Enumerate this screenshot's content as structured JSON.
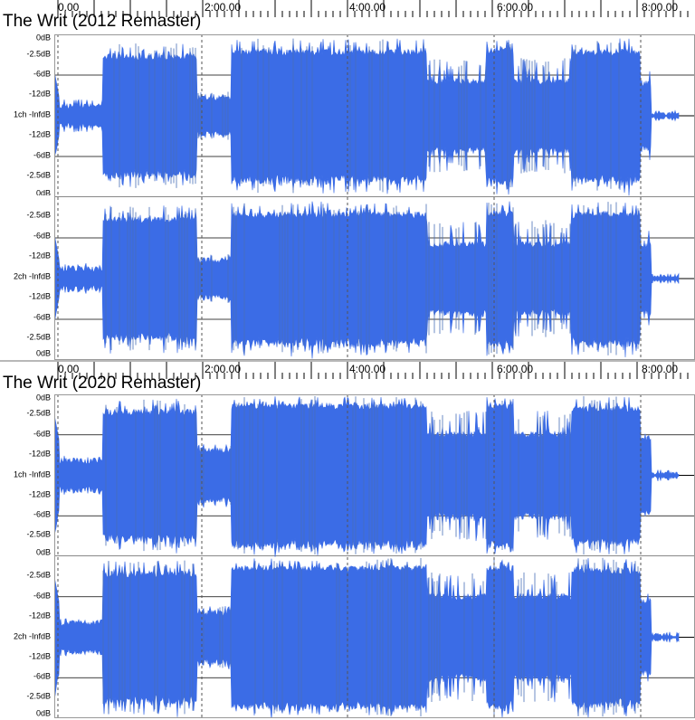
{
  "ruler_labels": [
    "0.00",
    "2:00.00",
    "4:00.00",
    "6:00.00",
    "8:00.00"
  ],
  "db_scale": [
    "0dB",
    "-2.5dB",
    "-6dB",
    "-12dB",
    "-InfdB",
    "-12dB",
    "-6dB",
    "-2.5dB",
    "0dB"
  ],
  "colors": {
    "waveform": "#3b6ce6",
    "background": "#ffffff",
    "gridline": "#000000"
  },
  "tracks": [
    {
      "title": "The Writ (2012 Remaster)",
      "channels": [
        {
          "label": "1ch",
          "db_scale": [
            "0dB",
            "-2.5dB",
            "-6dB",
            "-12dB",
            "-InfdB",
            "-12dB",
            "-6dB",
            "-2.5dB",
            "0dB"
          ]
        },
        {
          "label": "2ch",
          "db_scale": [
            "0dB",
            "-2.5dB",
            "-6dB",
            "-12dB",
            "-InfdB",
            "-12dB",
            "-6dB",
            "-2.5dB",
            "0dB"
          ]
        }
      ]
    },
    {
      "title": "The Writ (2020 Remaster)",
      "channels": [
        {
          "label": "1ch",
          "db_scale": [
            "0dB",
            "-2.5dB",
            "-6dB",
            "-12dB",
            "-InfdB",
            "-12dB",
            "-6dB",
            "-2.5dB",
            "0dB"
          ]
        },
        {
          "label": "2ch",
          "db_scale": [
            "0dB",
            "-2.5dB",
            "-6dB",
            "-12dB",
            "-InfdB",
            "-12dB",
            "-6dB",
            "-2.5dB",
            "0dB"
          ]
        }
      ]
    }
  ]
}
